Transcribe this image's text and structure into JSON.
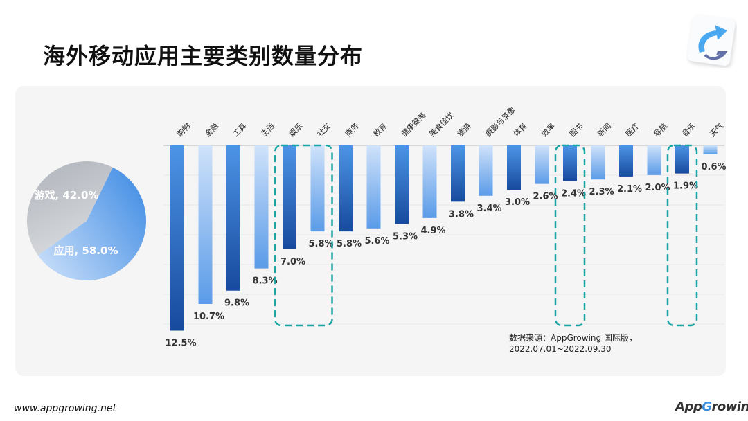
{
  "title": "海外移动应用主要类别数量分布",
  "footer": {
    "url": "www.appgrowing.net",
    "brand_logo_text": "AppGrowing"
  },
  "source": {
    "line1": "数据来源：AppGrowing 国际版，",
    "line2": "2022.07.01~2022.09.30"
  },
  "chart_data": [
    {
      "type": "pie",
      "slices": [
        {
          "label": "应用",
          "value": 58.0,
          "display": "应用, 58.0%",
          "color": "#5b9bea"
        },
        {
          "label": "游戏",
          "value": 42.0,
          "display": "游戏, 42.0%",
          "color": "#b4b8bf"
        }
      ]
    },
    {
      "type": "bar",
      "orientation": "downward",
      "categories": [
        "购物",
        "金融",
        "工具",
        "生活",
        "娱乐",
        "社交",
        "商务",
        "教育",
        "健康健美",
        "美食佳饮",
        "旅游",
        "摄影与录像",
        "体育",
        "效率",
        "图书",
        "新闻",
        "医疗",
        "导航",
        "音乐",
        "天气"
      ],
      "values": [
        12.5,
        10.7,
        9.8,
        8.3,
        7.0,
        5.8,
        5.8,
        5.6,
        5.3,
        4.9,
        3.8,
        3.4,
        3.0,
        2.6,
        2.4,
        2.3,
        2.1,
        2.0,
        1.9,
        0.6
      ],
      "labels": [
        "12.5%",
        "10.7%",
        "9.8%",
        "8.3%",
        "7.0%",
        "5.8%",
        "5.8%",
        "5.6%",
        "5.3%",
        "4.9%",
        "3.8%",
        "3.4%",
        "3.0%",
        "2.6%",
        "2.4%",
        "2.3%",
        "2.1%",
        "2.0%",
        "1.9%",
        "0.6%"
      ],
      "highlighted": [
        "娱乐",
        "社交",
        "图书",
        "音乐"
      ],
      "colors": {
        "dark_top": "#4d94e6",
        "dark_bottom": "#174a9e",
        "light_top": "#cfe2fa",
        "light_bottom": "#5a9be8",
        "highlight": "#1aa5a5"
      },
      "grid": true
    }
  ]
}
